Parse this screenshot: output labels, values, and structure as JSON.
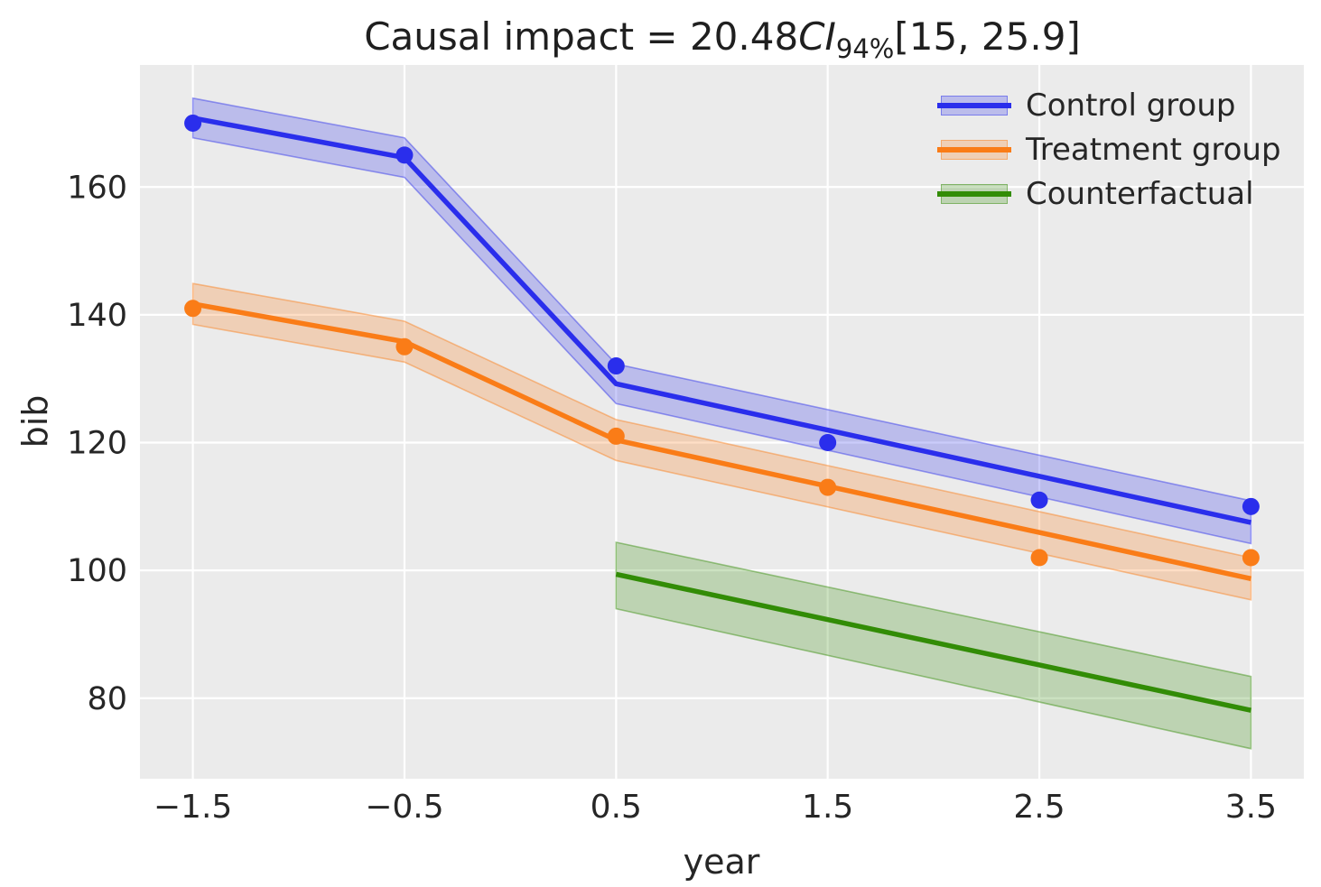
{
  "title": {
    "prefix": "Causal impact = 20.48",
    "ci": "CI",
    "sub": "94%",
    "interval": "[15, 25.9]"
  },
  "colors": {
    "figure_background": "#ffffff",
    "plot_background": "#ebebeb",
    "grid": "#ffffff",
    "text": "#262626",
    "control": "#2a2eec",
    "treatment": "#fa7c17",
    "counterfactual": "#328c06"
  },
  "chart_data": {
    "type": "line",
    "title": "Causal impact = 20.48 CI_94% [15, 25.9]",
    "xlabel": "year",
    "ylabel": "bib",
    "xlim": [
      -1.75,
      3.75
    ],
    "ylim": [
      67.4,
      179.1
    ],
    "grid": true,
    "legend_position": "upper right",
    "xticks": [
      {
        "v": -1.5,
        "label": "−1.5"
      },
      {
        "v": -0.5,
        "label": "−0.5"
      },
      {
        "v": 0.5,
        "label": "0.5"
      },
      {
        "v": 1.5,
        "label": "1.5"
      },
      {
        "v": 2.5,
        "label": "2.5"
      },
      {
        "v": 3.5,
        "label": "3.5"
      }
    ],
    "yticks": [
      {
        "v": 80,
        "label": "80"
      },
      {
        "v": 100,
        "label": "100"
      },
      {
        "v": 120,
        "label": "120"
      },
      {
        "v": 140,
        "label": "140"
      },
      {
        "v": 160,
        "label": "160"
      }
    ],
    "series": [
      {
        "name": "Control group",
        "color": "#2a2eec",
        "band_alpha": 0.25,
        "line": {
          "x": [
            -1.5,
            -0.5,
            0.5,
            3.5
          ],
          "y": [
            170.8,
            164.6,
            129.2,
            107.5
          ]
        },
        "band": {
          "x": [
            -1.5,
            -0.5,
            0.5,
            3.5
          ],
          "upper": [
            173.9,
            167.7,
            132.3,
            110.9
          ],
          "lower": [
            167.7,
            161.5,
            126.1,
            104.2
          ]
        },
        "scatter": {
          "x": [
            -1.5,
            -0.5,
            0.5,
            1.5,
            2.5,
            3.5
          ],
          "y": [
            170,
            165,
            132,
            120,
            111,
            110
          ]
        }
      },
      {
        "name": "Treatment group",
        "color": "#fa7c17",
        "band_alpha": 0.25,
        "line": {
          "x": [
            -1.5,
            -0.5,
            0.5,
            3.5
          ],
          "y": [
            141.7,
            135.8,
            120.4,
            98.7
          ]
        },
        "band": {
          "x": [
            -1.5,
            -0.5,
            0.5,
            3.5
          ],
          "upper": [
            144.9,
            139.0,
            123.6,
            102.0
          ],
          "lower": [
            138.5,
            132.6,
            117.2,
            95.4
          ]
        },
        "scatter": {
          "x": [
            -1.5,
            -0.5,
            0.5,
            1.5,
            2.5,
            3.5
          ],
          "y": [
            141,
            135,
            121,
            113,
            102,
            102
          ]
        }
      },
      {
        "name": "Counterfactual",
        "color": "#328c06",
        "band_alpha": 0.25,
        "line": {
          "x": [
            0.5,
            3.5
          ],
          "y": [
            99.4,
            78.1
          ]
        },
        "band": {
          "x": [
            0.5,
            3.5
          ],
          "upper": [
            104.4,
            83.4
          ],
          "lower": [
            94.0,
            72.1
          ]
        },
        "scatter": null
      }
    ]
  }
}
